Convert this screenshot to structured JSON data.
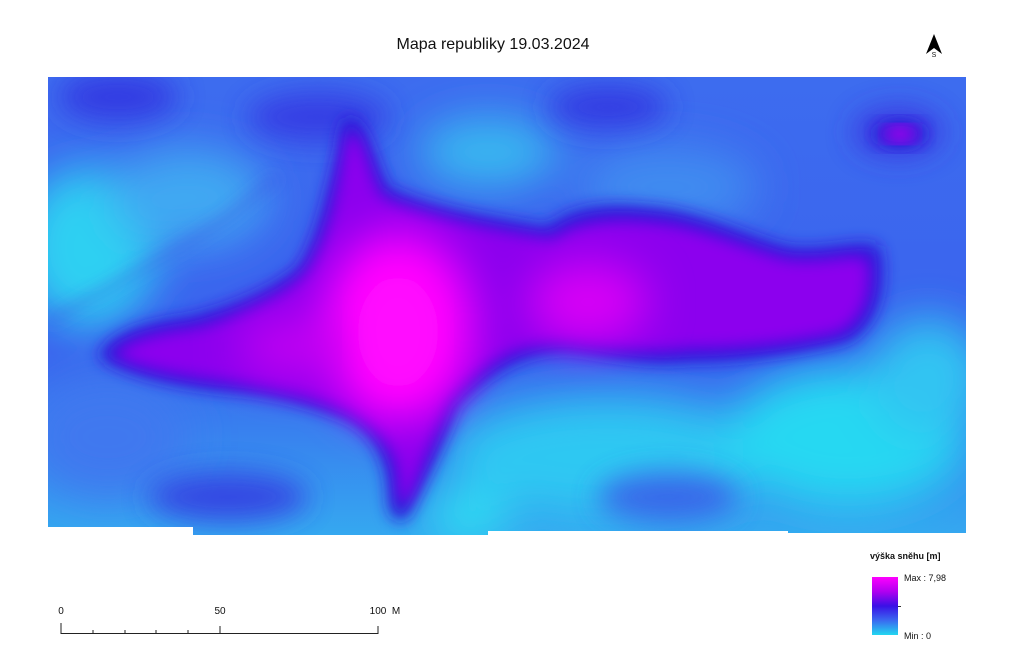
{
  "map": {
    "title": "Mapa republiky 19.03.2024",
    "north_label": "S",
    "colors": {
      "high": "#ff00ff",
      "mid_high": "#b000f0",
      "mid": "#3a10e6",
      "low_mid": "#3a6af0",
      "low": "#22d7f0"
    }
  },
  "scale_bar": {
    "labels": [
      "0",
      "50",
      "100"
    ],
    "unit": "M"
  },
  "legend": {
    "title": "výška sněhu [m]",
    "max_label": "Max : 7,98",
    "min_label": "Min : 0"
  }
}
